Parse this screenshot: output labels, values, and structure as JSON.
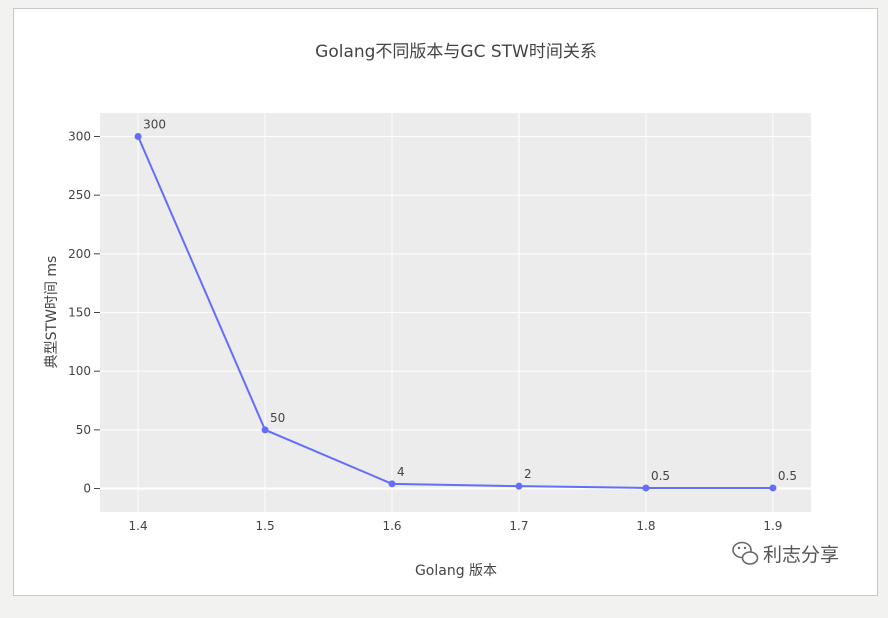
{
  "chart_data": {
    "type": "line",
    "title": "Golang不同版本与GC STW时间关系",
    "xlabel": "Golang 版本",
    "ylabel": "典型STW时间 ms",
    "x": [
      1.4,
      1.5,
      1.6,
      1.7,
      1.8,
      1.9
    ],
    "x_ticks": [
      "1.4",
      "1.5",
      "1.6",
      "1.7",
      "1.8",
      "1.9"
    ],
    "series": [
      {
        "values": [
          300,
          50,
          4,
          2,
          0.5,
          0.5
        ],
        "labels": [
          "300",
          "50",
          "4",
          "2",
          "0.5",
          "0.5"
        ],
        "color": "#636efa"
      }
    ],
    "y_ticks": [
      0,
      50,
      100,
      150,
      200,
      250,
      300
    ],
    "xlim": [
      1.37,
      1.93
    ],
    "ylim": [
      -20,
      320
    ],
    "grid": true,
    "plot_background": "#ececec"
  },
  "watermark": {
    "text": "利志分享",
    "icon": "wechat-icon"
  }
}
